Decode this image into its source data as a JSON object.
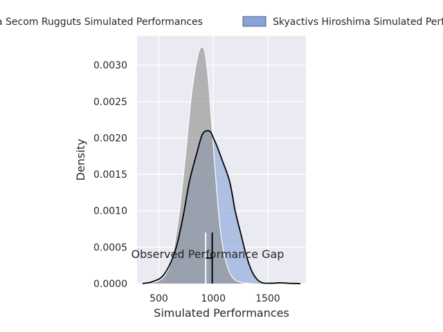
{
  "chart_data": {
    "type": "area",
    "title": "",
    "xlabel": "Simulated Performances",
    "ylabel": "Density",
    "xlim": [
      300,
      1850
    ],
    "ylim": [
      0,
      0.0034
    ],
    "xticks": [
      500,
      1000,
      1500
    ],
    "yticks": [
      0.0,
      0.0005,
      0.001,
      0.0015,
      0.002,
      0.0025,
      0.003
    ],
    "xtick_labels": [
      "500",
      "1000",
      "1500"
    ],
    "ytick_labels": [
      "0.0000",
      "0.0005",
      "0.0010",
      "0.0015",
      "0.0020",
      "0.0025",
      "0.0030"
    ],
    "grid": true,
    "legend_placement": "top (above plot, spanning width)",
    "series": [
      {
        "name": "a Secom Rugguts Simulated Performances",
        "color": "#8c8c8c",
        "x": [
          440,
          500,
          560,
          620,
          680,
          720,
          760,
          800,
          840,
          870,
          900,
          920,
          940,
          960,
          980,
          1000,
          1030,
          1060,
          1100,
          1150,
          1200,
          1250,
          1300,
          1360
        ],
        "y": [
          1e-05,
          4e-05,
          0.00012,
          0.00035,
          0.0009,
          0.0014,
          0.002,
          0.0026,
          0.003,
          0.0032,
          0.00325,
          0.0032,
          0.003,
          0.0027,
          0.0023,
          0.0019,
          0.0013,
          0.0008,
          0.0004,
          0.00015,
          5e-05,
          2e-05,
          5e-06,
          0.0
        ]
      },
      {
        "name": "Skyactivs Hiroshima Simulated Performances",
        "color": "#7a9bd6",
        "x": [
          350,
          450,
          550,
          650,
          720,
          780,
          850,
          900,
          950,
          980,
          1000,
          1030,
          1080,
          1150,
          1200,
          1250,
          1300,
          1350,
          1400,
          1450,
          1500,
          1550,
          1600,
          1650,
          1700,
          1800
        ],
        "y": [
          0.0,
          3e-05,
          0.00013,
          0.00045,
          0.0009,
          0.0014,
          0.0018,
          0.00205,
          0.0021,
          0.00207,
          0.002,
          0.0019,
          0.0017,
          0.0014,
          0.001,
          0.0007,
          0.0004,
          0.00018,
          6e-05,
          1e-05,
          5e-06,
          5e-06,
          1e-05,
          8e-06,
          3e-06,
          0.0
        ]
      }
    ],
    "annotations": [
      {
        "text": "Observed Performance Gap",
        "x": 920,
        "y": 0.00042
      }
    ],
    "markers": {
      "vline_a_x": 930,
      "vline_b_x": 990,
      "vline_top": 0.0007,
      "gap_y": 0.00035
    }
  }
}
